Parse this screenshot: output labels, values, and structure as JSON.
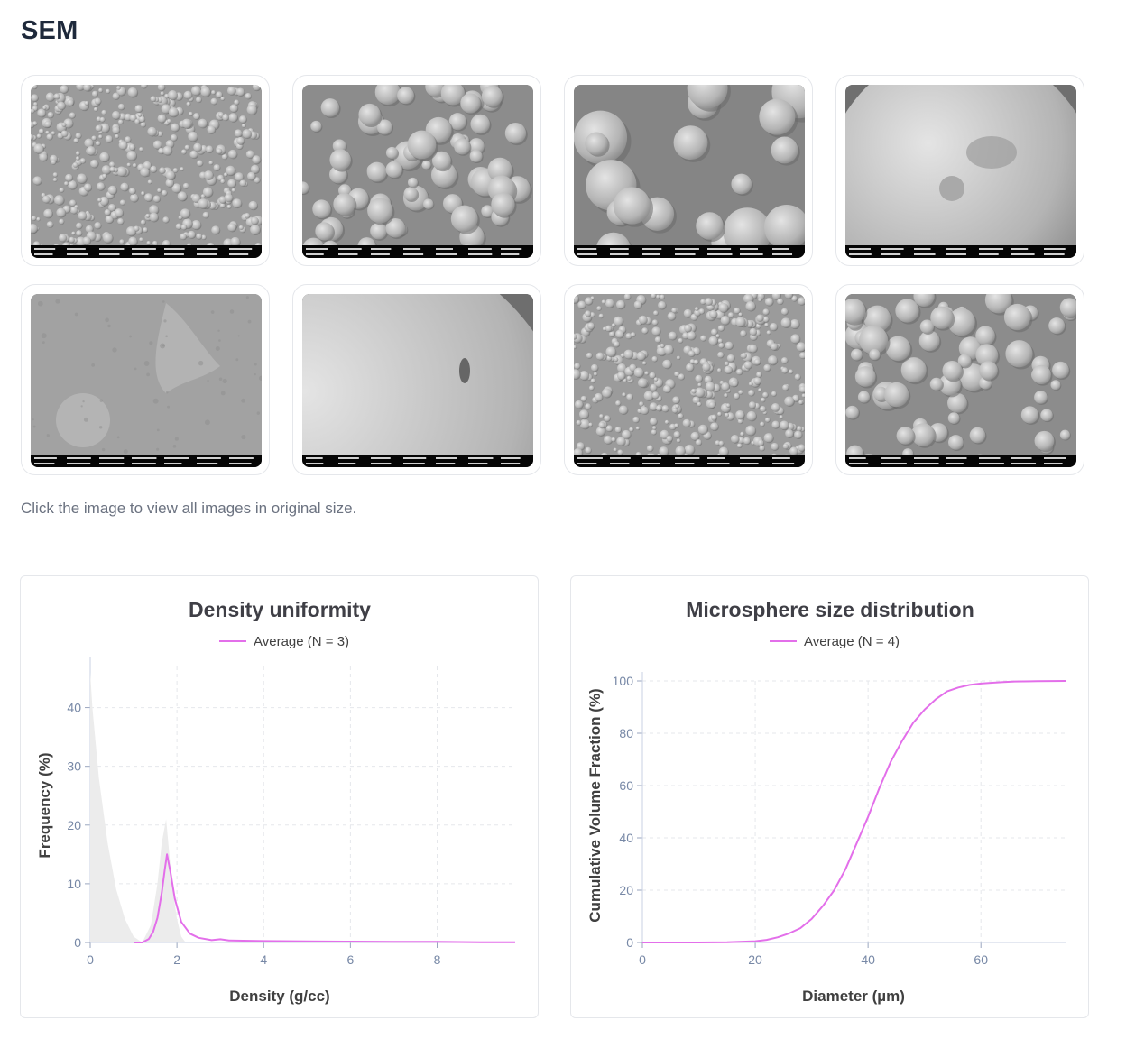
{
  "section": {
    "title": "SEM",
    "hint": "Click the image to view all images in original size."
  },
  "sem_images": [
    {
      "icon": "sem-micrograph-icon",
      "texture": "many-small-spheres"
    },
    {
      "icon": "sem-micrograph-icon",
      "texture": "medium-spheres"
    },
    {
      "icon": "sem-micrograph-icon",
      "texture": "large-spheres"
    },
    {
      "icon": "sem-micrograph-icon",
      "texture": "single-sphere-surface"
    },
    {
      "icon": "sem-micrograph-icon",
      "texture": "surface-closeup"
    },
    {
      "icon": "sem-micrograph-icon",
      "texture": "sphere-edge"
    },
    {
      "icon": "sem-micrograph-icon",
      "texture": "many-small-spheres"
    },
    {
      "icon": "sem-micrograph-icon",
      "texture": "medium-spheres"
    }
  ],
  "colors": {
    "series": "#e36fea",
    "grid": "#e5e7eb",
    "tick": "#7788a6",
    "histogram": "#ececec"
  },
  "chart_data": [
    {
      "type": "line",
      "title": "Density uniformity",
      "legend": "Average (N = 3)",
      "legend_position": "top",
      "xlabel": "Density (g/cc)",
      "ylabel": "Frequency (%)",
      "xlim": [
        0,
        9.8
      ],
      "ylim": [
        0,
        47
      ],
      "xticks": [
        0,
        2,
        4,
        6,
        8
      ],
      "yticks": [
        0,
        10,
        20,
        30,
        40
      ],
      "grid": true,
      "background_histogram": {
        "x": [
          0,
          0.05,
          0.2,
          0.4,
          0.6,
          0.8,
          1.0,
          1.2,
          1.4,
          1.55,
          1.65,
          1.75,
          1.8,
          1.9,
          2.0,
          2.1,
          2.2
        ],
        "y": [
          46,
          40,
          28,
          17,
          9,
          4,
          1,
          0,
          3,
          10,
          17,
          21,
          17,
          9,
          4,
          1,
          0
        ]
      },
      "series": [
        {
          "name": "Average (N = 3)",
          "x": [
            1.0,
            1.2,
            1.35,
            1.45,
            1.55,
            1.65,
            1.72,
            1.77,
            1.85,
            1.95,
            2.1,
            2.3,
            2.5,
            2.8,
            3.0,
            3.2,
            4,
            5,
            6,
            7,
            8,
            9,
            9.8
          ],
          "y": [
            0,
            0,
            0.6,
            1.8,
            4.2,
            8.5,
            12.5,
            15,
            12,
            7.5,
            3.5,
            1.5,
            0.8,
            0.4,
            0.55,
            0.35,
            0.25,
            0.2,
            0.15,
            0.1,
            0.1,
            0.05,
            0.05
          ]
        }
      ]
    },
    {
      "type": "line",
      "title": "Microsphere size distribution",
      "legend": "Average (N = 4)",
      "legend_position": "top",
      "xlabel": "Diameter (µm)",
      "ylabel": "Cumulative Volume Fraction (%)",
      "xlim": [
        0,
        75
      ],
      "ylim": [
        0,
        100
      ],
      "xticks": [
        0,
        20,
        40,
        60
      ],
      "yticks": [
        0,
        20,
        40,
        60,
        80,
        100
      ],
      "grid": true,
      "series": [
        {
          "name": "Average (N = 4)",
          "x": [
            0,
            10,
            15,
            20,
            22,
            24,
            26,
            28,
            30,
            32,
            34,
            36,
            38,
            40,
            42,
            44,
            46,
            48,
            50,
            52,
            54,
            56,
            58,
            60,
            62,
            64,
            66,
            70,
            75
          ],
          "y": [
            0,
            0,
            0.1,
            0.5,
            1,
            2,
            3.5,
            5.5,
            9,
            14,
            20,
            28,
            38,
            48,
            59,
            69,
            77,
            84,
            89,
            93,
            96,
            97.5,
            98.5,
            99,
            99.3,
            99.6,
            99.8,
            99.9,
            100
          ]
        }
      ]
    }
  ]
}
